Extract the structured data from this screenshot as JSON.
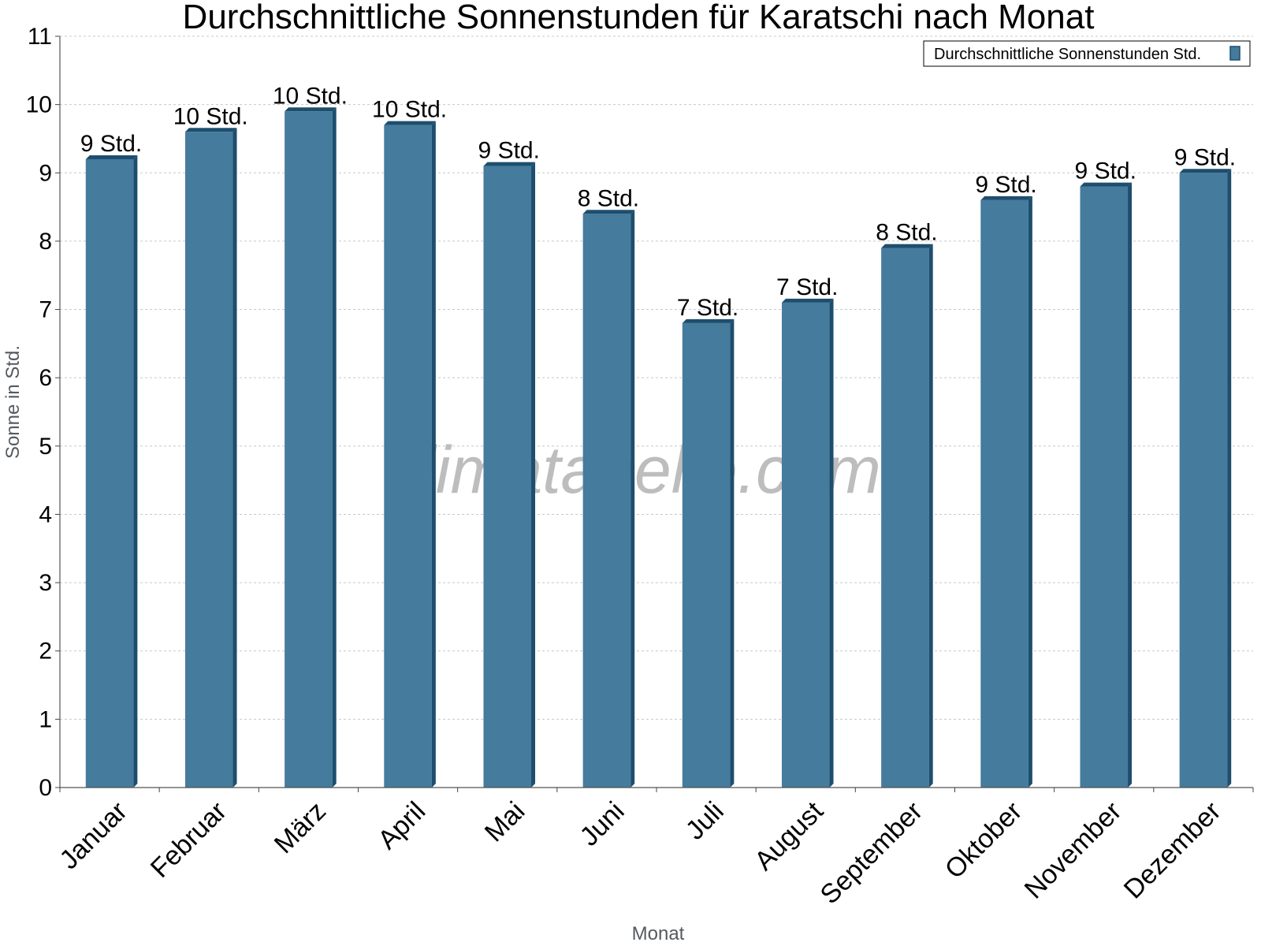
{
  "chart_data": {
    "type": "bar",
    "title": "Durchschnittliche Sonnenstunden für Karatschi nach Monat",
    "xlabel": "Monat",
    "ylabel": "Sonne in Std.",
    "ylim": [
      0,
      11
    ],
    "yticks": [
      0,
      1,
      2,
      3,
      4,
      5,
      6,
      7,
      8,
      9,
      10,
      11
    ],
    "grid": true,
    "legend_position": "top-right",
    "categories": [
      "Januar",
      "Februar",
      "März",
      "April",
      "Mai",
      "Juni",
      "Juli",
      "August",
      "September",
      "Oktober",
      "November",
      "Dezember"
    ],
    "series": [
      {
        "name": "Durchschnittliche Sonnenstunden Std.",
        "values": [
          9.2,
          9.6,
          9.9,
          9.7,
          9.1,
          8.4,
          6.8,
          7.1,
          7.9,
          8.6,
          8.8,
          9.0
        ],
        "labels": [
          "9 Std.",
          "10 Std.",
          "10 Std.",
          "10 Std.",
          "9 Std.",
          "8 Std.",
          "7 Std.",
          "7 Std.",
          "8 Std.",
          "9 Std.",
          "9 Std.",
          "9 Std."
        ],
        "color": "#457b9d",
        "side_color": "#1d4e6e"
      }
    ],
    "watermark": "klimatabelle.com"
  }
}
